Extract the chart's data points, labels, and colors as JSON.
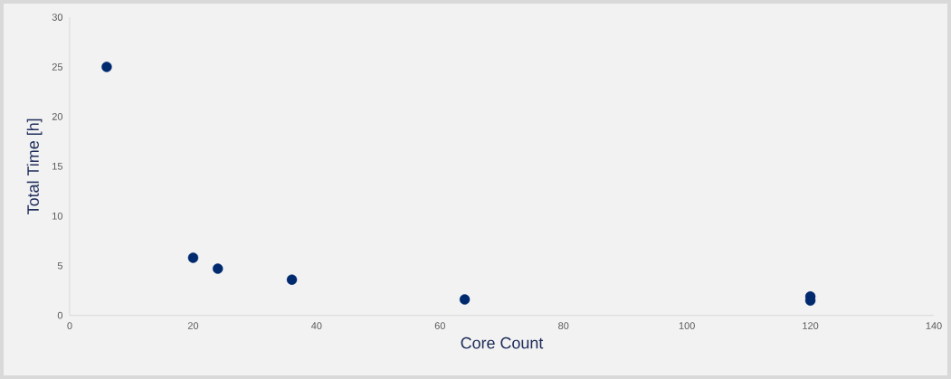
{
  "chart_data": {
    "type": "scatter",
    "xlabel": "Core Count",
    "ylabel": "Total Time [h]",
    "x": [
      6,
      20,
      24,
      36,
      64,
      120,
      120
    ],
    "values": [
      25,
      5.8,
      4.7,
      3.6,
      1.6,
      1.9,
      1.5
    ],
    "color": "#002a6e",
    "marker": "circle",
    "xlim": [
      0,
      140
    ],
    "ylim": [
      0,
      30
    ],
    "xticks": [
      0,
      20,
      40,
      60,
      80,
      100,
      120,
      140
    ],
    "yticks": [
      0,
      5,
      10,
      15,
      20,
      25,
      30
    ]
  }
}
